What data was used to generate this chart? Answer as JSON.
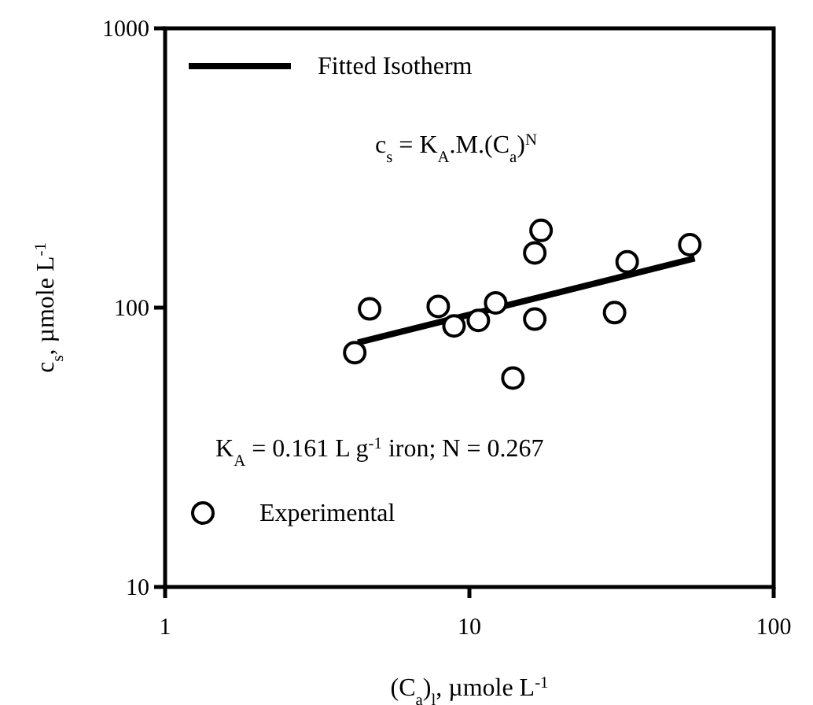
{
  "chart_data": {
    "type": "scatter",
    "xlabel": "(C$_{a}$)$_{l}$, µmole L$^{-1}$",
    "ylabel": "c$_{s}$, µmole L$^{-1}$",
    "log": "xy",
    "xlim": [
      1,
      100
    ],
    "ylim": [
      10,
      1000
    ],
    "xticks": [
      1,
      10,
      100
    ],
    "yticks": [
      10,
      100,
      1000
    ],
    "grid": false,
    "legend": "left",
    "annotations": [
      "c$_{s}$ = K$_{A}$.M.(C$_{a}$)$^{N}$",
      "K$_{A}$ = 0.161 L g$^{-1}$ iron; N = 0.267"
    ],
    "series": [
      {
        "name": "Experimental",
        "color": "#000000",
        "marker": "circle",
        "x": [
          4.2,
          4.7,
          7.9,
          8.9,
          10.7,
          12.2,
          13.9,
          16.4,
          16.4,
          17.2,
          30,
          33,
          53
        ],
        "values": [
          69,
          99,
          101,
          86,
          90,
          104,
          56,
          91,
          157,
          189,
          96,
          146,
          168
        ]
      },
      {
        "name": "Fitted Isotherm",
        "type": "line",
        "color": "#000000",
        "line_style": "solid",
        "x": [
          4.3,
          55
        ],
        "values": [
          75,
          150
        ]
      }
    ]
  }
}
